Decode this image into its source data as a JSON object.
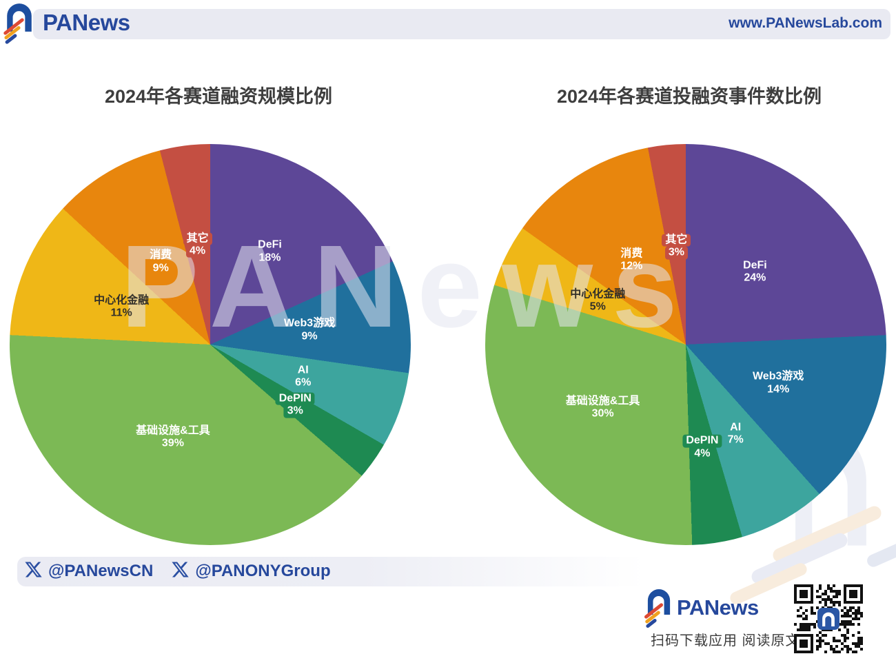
{
  "header": {
    "brand": "PANews",
    "url": "www.PANewsLab.com"
  },
  "watermark": "PANews",
  "footer": {
    "handle_1": "@PANewsCN",
    "handle_2": "@PANONYGroup",
    "brand": "PANews",
    "tagline": "扫码下载应用  阅读原文"
  },
  "chart_data": [
    {
      "type": "pie",
      "title": "2024年各赛道融资规模比例",
      "unit": "%",
      "start_angle_deg": 0,
      "direction": "clockwise",
      "legend_position": "none",
      "slices": [
        {
          "label": "DeFi",
          "value": 18,
          "color": "#5D4797",
          "text_color": "#FFFFFF",
          "label_r": 0.55
        },
        {
          "label": "Web3游戏",
          "value": 9,
          "color": "#20709D",
          "text_color": "#FFFFFF",
          "label_r": 0.5
        },
        {
          "label": "AI",
          "value": 6,
          "color": "#3DA59E",
          "text_color": "#FFFFFF",
          "label_r": 0.49
        },
        {
          "label": "DePIN",
          "value": 3,
          "color": "#1E8A52",
          "text_color": "#FFFFFF",
          "label_r": 0.52,
          "badge": true
        },
        {
          "label": "基础设施&工具",
          "value": 39,
          "color": "#7CB955",
          "text_color": "#FFFFFF",
          "label_r": 0.5
        },
        {
          "label": "中心化金融",
          "value": 11,
          "color": "#EFB717",
          "text_color": "#33302A",
          "label_r": 0.48
        },
        {
          "label": "消费",
          "value": 9,
          "color": "#E8860D",
          "text_color": "#FFFFFF",
          "label_r": 0.48
        },
        {
          "label": "其它",
          "value": 4,
          "color": "#C44F42",
          "text_color": "#FFFFFF",
          "label_r": 0.5,
          "badge": true
        }
      ]
    },
    {
      "type": "pie",
      "title": "2024年各赛道投融资事件数比例",
      "unit": "%",
      "start_angle_deg": 0,
      "direction": "clockwise",
      "legend_position": "none",
      "slices": [
        {
          "label": "DeFi",
          "value": 24,
          "color": "#5D4797",
          "text_color": "#FFFFFF",
          "label_r": 0.5
        },
        {
          "label": "Web3游戏",
          "value": 14,
          "color": "#20709D",
          "text_color": "#FFFFFF",
          "label_r": 0.5
        },
        {
          "label": "AI",
          "value": 7,
          "color": "#3DA59E",
          "text_color": "#FFFFFF",
          "label_r": 0.51
        },
        {
          "label": "DePIN",
          "value": 4,
          "color": "#1E8A52",
          "text_color": "#FFFFFF",
          "label_r": 0.52,
          "badge": true
        },
        {
          "label": "基础设施&工具",
          "value": 30,
          "color": "#7CB955",
          "text_color": "#FFFFFF",
          "label_r": 0.52
        },
        {
          "label": "中心化金融",
          "value": 5,
          "color": "#EFB717",
          "text_color": "#33302A",
          "label_r": 0.49
        },
        {
          "label": "消费",
          "value": 12,
          "color": "#E8860D",
          "text_color": "#FFFFFF",
          "label_r": 0.5
        },
        {
          "label": "其它",
          "value": 3,
          "color": "#C44F42",
          "text_color": "#FFFFFF",
          "label_r": 0.49,
          "badge": true
        }
      ]
    }
  ]
}
